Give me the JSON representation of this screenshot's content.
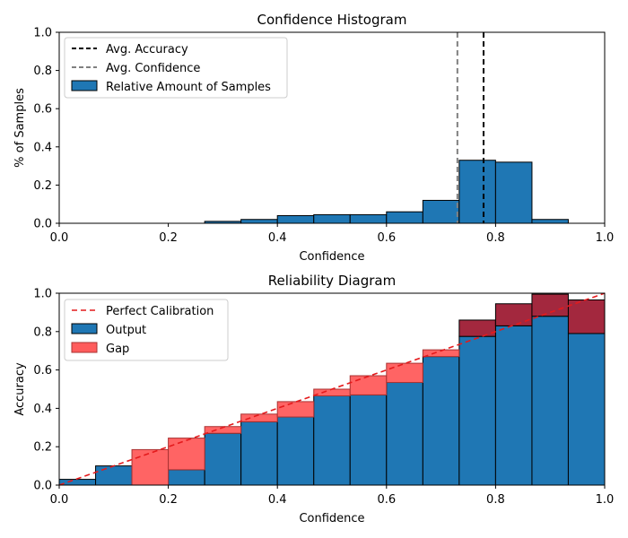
{
  "chart_data": [
    {
      "type": "bar",
      "title": "Confidence Histogram",
      "xlabel": "Confidence",
      "ylabel": "% of Samples",
      "xlim": [
        0.0,
        1.0
      ],
      "ylim": [
        0.0,
        1.0
      ],
      "xticks": [
        "0.0",
        "0.2",
        "0.4",
        "0.6",
        "0.8",
        "1.0"
      ],
      "yticks": [
        "0.0",
        "0.2",
        "0.4",
        "0.6",
        "0.8",
        "1.0"
      ],
      "bin_edges": [
        0.0,
        0.0667,
        0.1333,
        0.2,
        0.2667,
        0.3333,
        0.4,
        0.4667,
        0.5333,
        0.6,
        0.6667,
        0.7333,
        0.8,
        0.8667,
        0.9333,
        1.0
      ],
      "series": [
        {
          "name": "Relative Amount of Samples",
          "color": "#1f77b4",
          "values": [
            0,
            0,
            0,
            0,
            0.01,
            0.02,
            0.04,
            0.045,
            0.045,
            0.06,
            0.12,
            0.33,
            0.32,
            0.02,
            0
          ]
        }
      ],
      "lines": [
        {
          "name": "Avg. Accuracy",
          "x": 0.778,
          "color": "#000000",
          "style": "dashed"
        },
        {
          "name": "Avg. Confidence",
          "x": 0.73,
          "color": "#808080",
          "style": "dashed"
        }
      ],
      "legend": [
        "Avg. Accuracy",
        "Avg. Confidence",
        "Relative Amount of Samples"
      ],
      "legend_position": "top-left"
    },
    {
      "type": "bar",
      "title": "Reliability Diagram",
      "xlabel": "Confidence",
      "ylabel": "Accuracy",
      "xlim": [
        0.0,
        1.0
      ],
      "ylim": [
        0.0,
        1.0
      ],
      "xticks": [
        "0.0",
        "0.2",
        "0.4",
        "0.6",
        "0.8",
        "1.0"
      ],
      "yticks": [
        "0.0",
        "0.2",
        "0.4",
        "0.6",
        "0.8",
        "1.0"
      ],
      "bin_edges": [
        0.0,
        0.0667,
        0.1333,
        0.2,
        0.2667,
        0.3333,
        0.4,
        0.4667,
        0.5333,
        0.6,
        0.6667,
        0.7333,
        0.8,
        0.8667,
        0.9333,
        1.0
      ],
      "series": [
        {
          "name": "Output",
          "color": "#1f77b4",
          "values": [
            0.03,
            0.1,
            0.0,
            0.08,
            0.27,
            0.33,
            0.355,
            0.465,
            0.47,
            0.535,
            0.67,
            0.775,
            0.83,
            0.88,
            0.79
          ]
        },
        {
          "name": "Gap",
          "color": "#ff5c5c",
          "overconfident_color": "#a3283e",
          "values": [
            0.03,
            0.1,
            0.185,
            0.245,
            0.305,
            0.37,
            0.435,
            0.5,
            0.57,
            0.635,
            0.705,
            0.86,
            0.945,
            0.995,
            0.965
          ]
        }
      ],
      "lines": [
        {
          "name": "Perfect Calibration",
          "from": [
            0,
            0
          ],
          "to": [
            1,
            1
          ],
          "color": "#e41a1c",
          "style": "dashed"
        }
      ],
      "legend": [
        "Perfect Calibration",
        "Output",
        "Gap"
      ],
      "legend_position": "top-left"
    }
  ]
}
